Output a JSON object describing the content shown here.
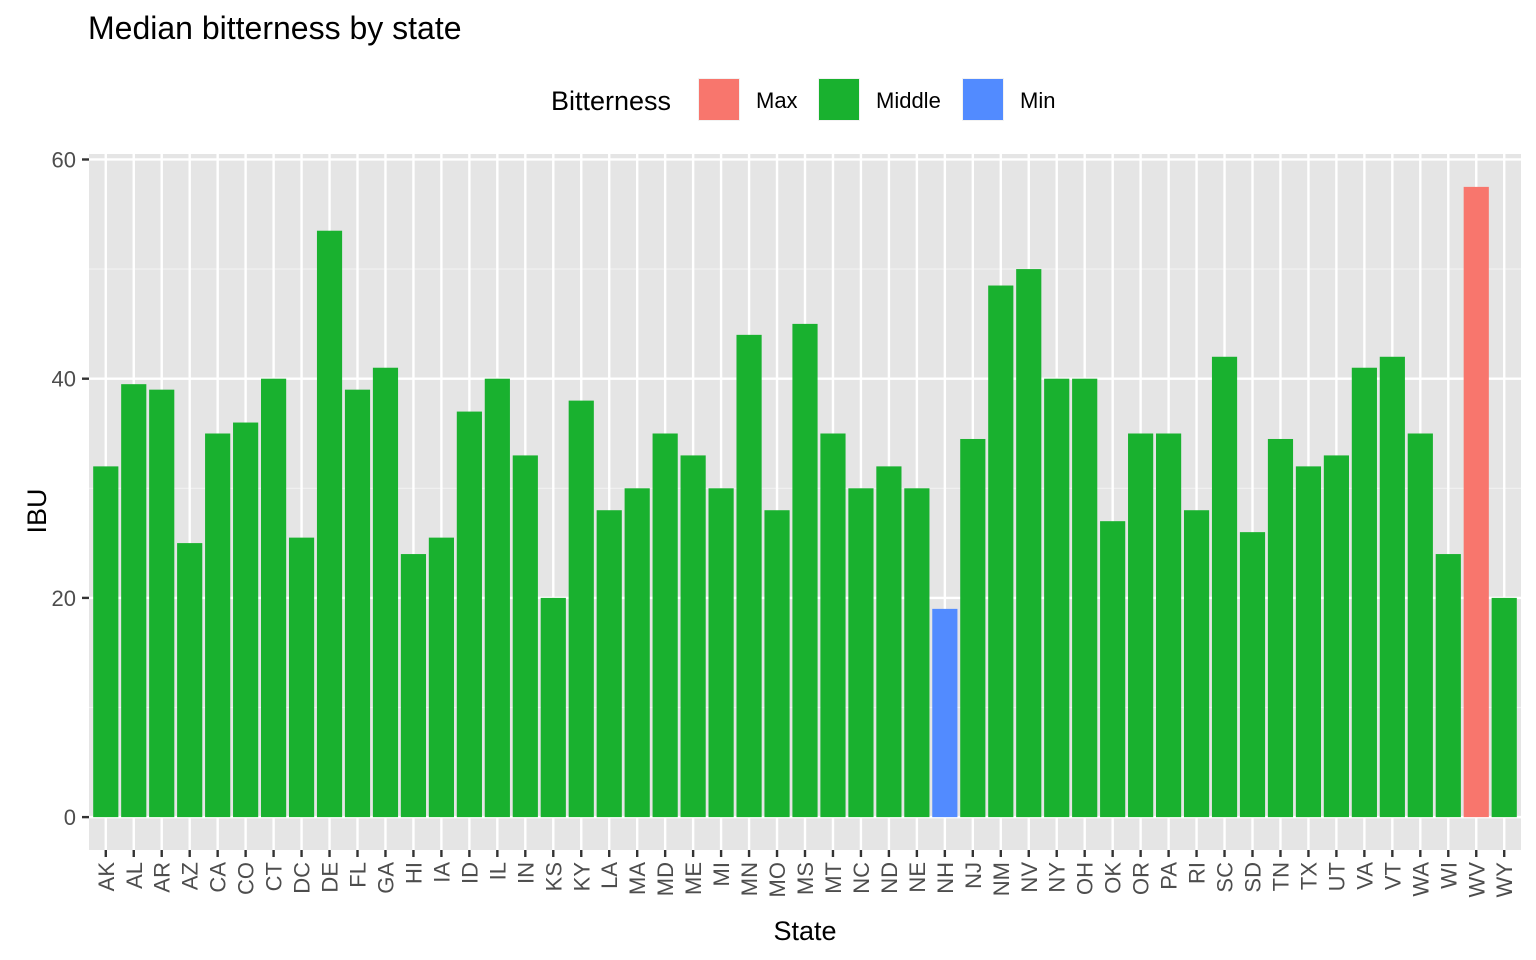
{
  "chart_data": {
    "type": "bar",
    "title": "Median bitterness by state",
    "xlabel": "State",
    "ylabel": "IBU",
    "ylim": [
      -3,
      60.5
    ],
    "yticks": [
      0,
      20,
      40,
      60
    ],
    "grid": true,
    "legend": {
      "title": "Bitterness",
      "placement": "top",
      "entries": [
        {
          "label": "Max",
          "color": "#F8766D"
        },
        {
          "label": "Middle",
          "color": "#19B12F"
        },
        {
          "label": "Min",
          "color": "#528BFF"
        }
      ]
    },
    "categories": [
      "AK",
      "AL",
      "AR",
      "AZ",
      "CA",
      "CO",
      "CT",
      "DC",
      "DE",
      "FL",
      "GA",
      "HI",
      "IA",
      "ID",
      "IL",
      "IN",
      "KS",
      "KY",
      "LA",
      "MA",
      "MD",
      "ME",
      "MI",
      "MN",
      "MO",
      "MS",
      "MT",
      "NC",
      "ND",
      "NE",
      "NH",
      "NJ",
      "NM",
      "NV",
      "NY",
      "OH",
      "OK",
      "OR",
      "PA",
      "RI",
      "SC",
      "SD",
      "TN",
      "TX",
      "UT",
      "VA",
      "VT",
      "WA",
      "WI",
      "WV",
      "WY"
    ],
    "values": [
      32,
      39.5,
      39,
      25,
      35,
      36,
      40,
      25.5,
      53.5,
      39,
      41,
      24,
      25.5,
      37,
      40,
      33,
      20,
      38,
      28,
      30,
      35,
      33,
      30,
      44,
      28,
      45,
      35,
      30,
      32,
      30,
      19,
      34.5,
      48.5,
      50,
      40,
      40,
      27,
      35,
      35,
      28,
      42,
      26,
      34.5,
      32,
      33,
      41,
      42,
      35,
      24,
      57.5,
      20
    ],
    "groups": [
      "Middle",
      "Middle",
      "Middle",
      "Middle",
      "Middle",
      "Middle",
      "Middle",
      "Middle",
      "Middle",
      "Middle",
      "Middle",
      "Middle",
      "Middle",
      "Middle",
      "Middle",
      "Middle",
      "Middle",
      "Middle",
      "Middle",
      "Middle",
      "Middle",
      "Middle",
      "Middle",
      "Middle",
      "Middle",
      "Middle",
      "Middle",
      "Middle",
      "Middle",
      "Middle",
      "Min",
      "Middle",
      "Middle",
      "Middle",
      "Middle",
      "Middle",
      "Middle",
      "Middle",
      "Middle",
      "Middle",
      "Middle",
      "Middle",
      "Middle",
      "Middle",
      "Middle",
      "Middle",
      "Middle",
      "Middle",
      "Middle",
      "Max",
      "Middle"
    ]
  }
}
